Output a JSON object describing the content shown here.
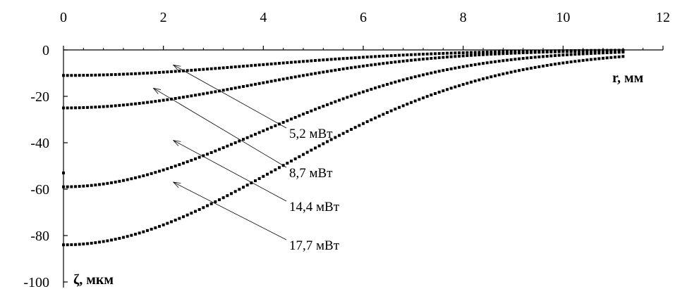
{
  "chart_data": {
    "type": "scatter",
    "title": "",
    "xlabel": "r, мм",
    "ylabel": "ζ, мкм",
    "xlim": [
      0,
      12
    ],
    "ylim": [
      -100,
      0
    ],
    "x_ticks": [
      0,
      2,
      4,
      6,
      8,
      10,
      12
    ],
    "y_ticks": [
      0,
      -20,
      -40,
      -60,
      -80,
      -100
    ],
    "grid": false,
    "legend": "none",
    "marker_color": "#000000",
    "series": [
      {
        "name": "5,2 мВт",
        "depth": -11,
        "halfwidth": 3.8,
        "x_start": 0,
        "x_end": 11.2,
        "annotation": {
          "label": "5,2 мВт",
          "point": [
            2.2,
            -6.5
          ]
        }
      },
      {
        "name": "8,7 мВт",
        "depth": -25,
        "halfwidth": 3.75,
        "x_start": 0,
        "x_end": 11.2,
        "annotation": {
          "label": "8,7 мВт",
          "point": [
            1.8,
            -16.5
          ]
        }
      },
      {
        "name": "14,4 мВт",
        "depth": -59,
        "halfwidth": 3.9,
        "x_start": 0,
        "x_end": 11.2,
        "annotation": {
          "label": "14,4 мВт",
          "point": [
            2.2,
            -39
          ]
        }
      },
      {
        "name": "17,7 мВт",
        "depth": -84,
        "halfwidth": 4.3,
        "x_start": 0,
        "x_end": 11.2,
        "annotation": {
          "label": "17,7 мВт",
          "point": [
            2.2,
            -57
          ]
        }
      }
    ],
    "outliers": [
      {
        "x": 0,
        "y": -53
      }
    ]
  }
}
